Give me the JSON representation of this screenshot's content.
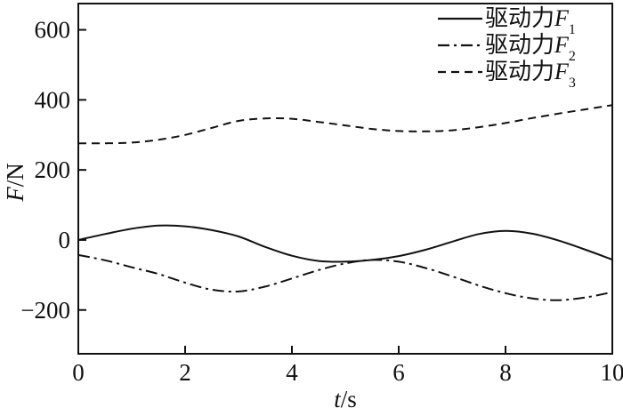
{
  "figure": {
    "background": "#ffffff",
    "ink_color": "#111111"
  },
  "chart_data": {
    "type": "line",
    "title": "",
    "xlabel": {
      "italic": "t",
      "rest": "/s"
    },
    "ylabel": {
      "italic": "F",
      "rest": "/N"
    },
    "xlim": [
      0,
      10
    ],
    "ylim": [
      -325,
      675
    ],
    "grid": false,
    "legend_position": "top-right-inside",
    "x_ticks": [
      {
        "v": 0,
        "label": "0"
      },
      {
        "v": 2,
        "label": "2"
      },
      {
        "v": 4,
        "label": "4"
      },
      {
        "v": 6,
        "label": "6"
      },
      {
        "v": 8,
        "label": "8"
      },
      {
        "v": 10,
        "label": "10"
      }
    ],
    "y_ticks": [
      {
        "v": -200,
        "label": "−200"
      },
      {
        "v": 0,
        "label": "0"
      },
      {
        "v": 200,
        "label": "200"
      },
      {
        "v": 400,
        "label": "400"
      },
      {
        "v": 600,
        "label": "600"
      }
    ],
    "x": [
      0,
      0.5,
      1,
      1.5,
      2,
      2.5,
      3,
      3.5,
      4,
      4.5,
      5,
      5.5,
      6,
      6.5,
      7,
      7.5,
      8,
      8.5,
      9,
      9.5,
      10
    ],
    "series": [
      {
        "name": "驱动力",
        "variable": "F",
        "subscript": "1",
        "line_style": "solid",
        "values": [
          0,
          17,
          32,
          41,
          39,
          28,
          10,
          -20,
          -45,
          -60,
          -62,
          -57,
          -46,
          -28,
          -5,
          17,
          26,
          18,
          -2,
          -28,
          -56
        ]
      },
      {
        "name": "驱动力",
        "variable": "F",
        "subscript": "2",
        "line_style": "dash-dot",
        "values": [
          -43,
          -58,
          -78,
          -97,
          -122,
          -142,
          -147,
          -133,
          -110,
          -86,
          -67,
          -57,
          -62,
          -80,
          -104,
          -130,
          -152,
          -167,
          -172,
          -164,
          -149
        ]
      },
      {
        "name": "驱动力",
        "variable": "F",
        "subscript": "3",
        "line_style": "dashed",
        "values": [
          276,
          276,
          278,
          286,
          300,
          320,
          340,
          347,
          346,
          337,
          327,
          317,
          311,
          310,
          313,
          322,
          334,
          348,
          361,
          373,
          385
        ]
      }
    ]
  }
}
